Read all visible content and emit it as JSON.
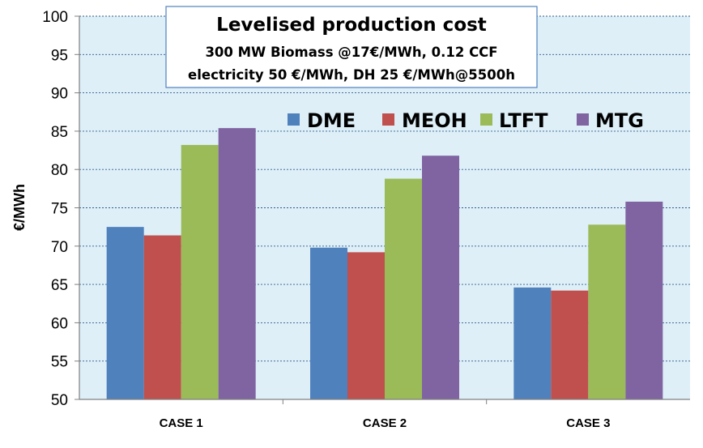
{
  "chart_data": {
    "type": "bar",
    "title": "Levelised production cost",
    "subtitle": [
      "300 MW Biomass @17€/MWh, 0.12 CCF",
      "electricity 50 €/MWh, DH 25 €/MWh@5500h"
    ],
    "xlabel": "",
    "ylabel": "€/MWh",
    "ylim": [
      50,
      100
    ],
    "yticks": [
      50,
      55,
      60,
      65,
      70,
      75,
      80,
      85,
      90,
      95,
      100
    ],
    "grid": true,
    "legend_position": "top-right",
    "categories": [
      "CASE 1",
      "CASE 2",
      "CASE 3"
    ],
    "series": [
      {
        "name": "DME",
        "color": "#4F81BD",
        "values": [
          72.5,
          69.8,
          64.6
        ]
      },
      {
        "name": "MEOH",
        "color": "#C0504D",
        "values": [
          71.4,
          69.2,
          64.2
        ]
      },
      {
        "name": "LTFT",
        "color": "#9BBB59",
        "values": [
          83.2,
          78.8,
          72.8
        ]
      },
      {
        "name": "MTG",
        "color": "#8064A2",
        "values": [
          85.4,
          81.8,
          75.8
        ]
      }
    ]
  },
  "colors": {
    "plot_background": "#DEEFF8",
    "gridline": "#2E5C8A",
    "axis": "#808080"
  }
}
